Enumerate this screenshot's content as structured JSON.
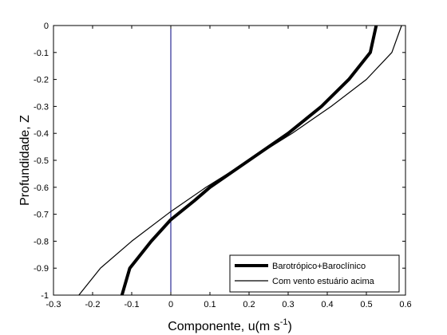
{
  "chart_data": {
    "type": "line",
    "xlabel": "Componente, u(m s",
    "xlabel_sup": "-1",
    "xlabel_end": ")",
    "ylabel": "Profundidade, Z",
    "xlim": [
      -0.3,
      0.6
    ],
    "ylim": [
      -1,
      0
    ],
    "xticks": [
      -0.3,
      -0.2,
      -0.1,
      0,
      0.1,
      0.2,
      0.3,
      0.4,
      0.5,
      0.6
    ],
    "xtick_labels": [
      "-0.3",
      "-0.2",
      "-0.1",
      "0",
      "0.1",
      "0.2",
      "0.3",
      "0.4",
      "0.5",
      "0.6"
    ],
    "yticks": [
      0,
      -0.1,
      -0.2,
      -0.3,
      -0.4,
      -0.5,
      -0.6,
      -0.7,
      -0.8,
      -0.9,
      -1
    ],
    "ytick_labels": [
      "0",
      "-0.1",
      "-0.2",
      "-0.3",
      "-0.4",
      "-0.5",
      "-0.6",
      "-0.7",
      "-0.8",
      "-0.9",
      "-1"
    ],
    "grid": false,
    "legend_position": "bottom-right",
    "reference_line": {
      "x": 0,
      "color": "#00007f"
    },
    "series": [
      {
        "name": "Barotrópico+Baroclínico",
        "line_weight": "thick",
        "color": "#000000",
        "x": [
          0.525,
          0.51,
          0.455,
          0.385,
          0.3,
          0.2,
          0.1,
          0.06,
          0.0,
          -0.05,
          -0.105,
          -0.125
        ],
        "y": [
          0,
          -0.1,
          -0.2,
          -0.3,
          -0.4,
          -0.5,
          -0.6,
          -0.65,
          -0.72,
          -0.8,
          -0.9,
          -1.0
        ]
      },
      {
        "name": "Com vento estuário acima",
        "line_weight": "thin",
        "color": "#000000",
        "x": [
          0.59,
          0.565,
          0.5,
          0.41,
          0.31,
          0.2,
          0.09,
          0.0,
          -0.1,
          -0.18,
          -0.235
        ],
        "y": [
          0,
          -0.1,
          -0.2,
          -0.3,
          -0.4,
          -0.5,
          -0.6,
          -0.69,
          -0.8,
          -0.9,
          -1.0
        ]
      }
    ]
  }
}
